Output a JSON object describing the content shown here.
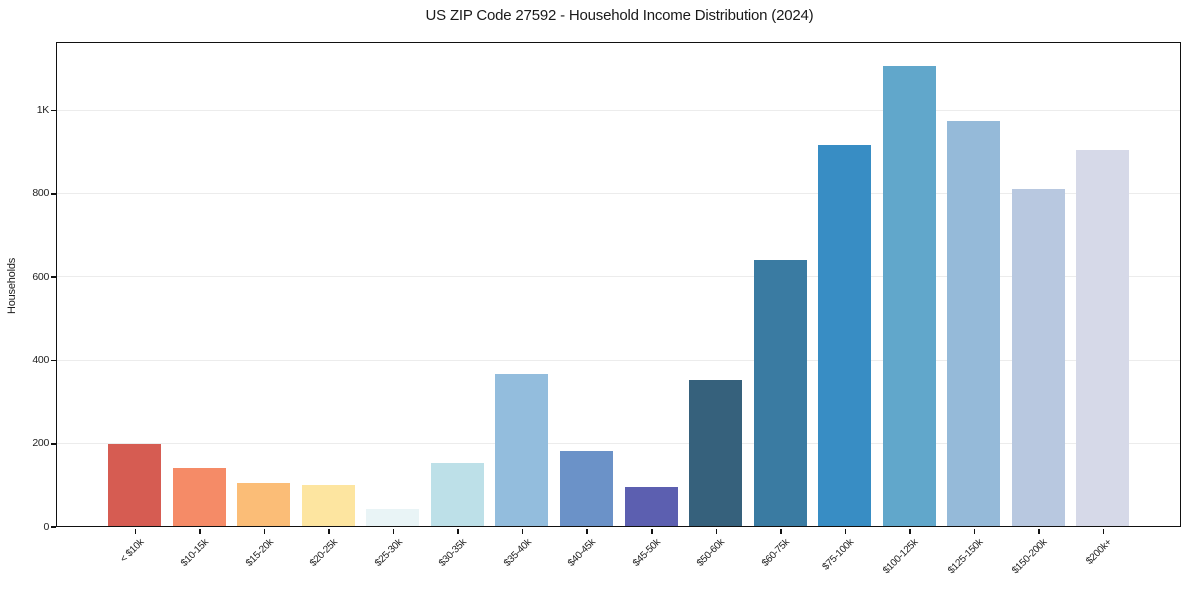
{
  "page": {
    "background": "#ffffff"
  },
  "chart_data": {
    "type": "bar",
    "title": "US ZIP Code 27592 - Household Income Distribution (2024)",
    "xlabel": "",
    "ylabel": "Households",
    "categories": [
      "< $10k",
      "$10-15k",
      "$15-20k",
      "$20-25k",
      "$25-30k",
      "$30-35k",
      "$35-40k",
      "$40-45k",
      "$45-50k",
      "$50-60k",
      "$60-75k",
      "$75-100k",
      "$100-125k",
      "$125-150k",
      "$150-200k",
      "$200k+"
    ],
    "values": [
      197,
      141,
      105,
      99,
      41,
      152,
      366,
      182,
      95,
      352,
      640,
      916,
      1106,
      974,
      810,
      903
    ],
    "bar_colors": [
      "#d65c52",
      "#f58b67",
      "#fbbd77",
      "#fde5a0",
      "#e9f4f6",
      "#bde0e8",
      "#93bddd",
      "#6b92c8",
      "#5c5fb0",
      "#36617c",
      "#3a7ba2",
      "#388dc4",
      "#61a7cb",
      "#95bad9",
      "#b8c8e0",
      "#d6d9e8"
    ],
    "ylim": [
      0,
      1160
    ],
    "yticks": [
      {
        "value": 0,
        "label": "0"
      },
      {
        "value": 200,
        "label": "200"
      },
      {
        "value": 400,
        "label": "400"
      },
      {
        "value": 600,
        "label": "600"
      },
      {
        "value": 800,
        "label": "800"
      },
      {
        "value": 1000,
        "label": "1K"
      }
    ],
    "grid": "horizontal",
    "grid_color": "#ececec",
    "axis_color": "#111111",
    "text_color": "#1a1a1a",
    "legend": "none"
  }
}
